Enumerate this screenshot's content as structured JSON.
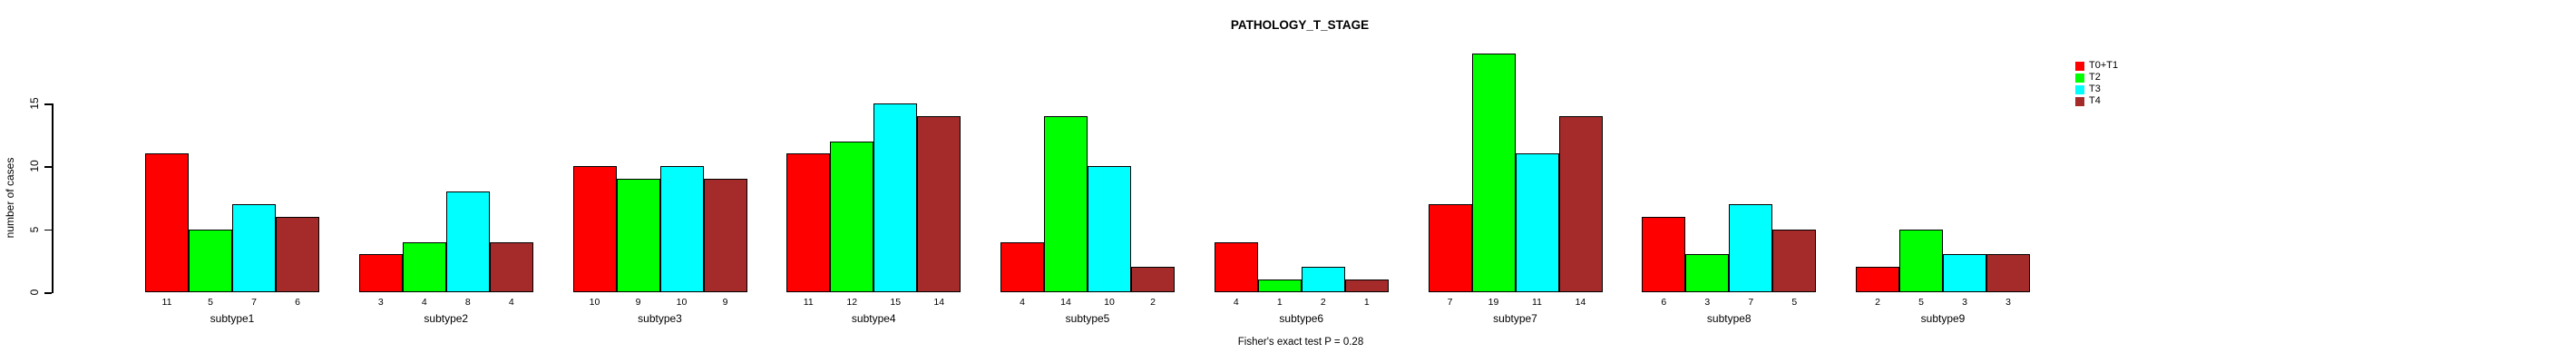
{
  "title": "PATHOLOGY_T_STAGE",
  "annotation": "Fisher's exact test P = 0.28",
  "y_axis": {
    "label": "number of cases",
    "ticks": [
      0,
      5,
      10,
      15
    ]
  },
  "legend": {
    "position": "right",
    "items": [
      {
        "label": "T0+T1",
        "color": "#FF0000"
      },
      {
        "label": "T2",
        "color": "#00FF00"
      },
      {
        "label": "T3",
        "color": "#00FFFF"
      },
      {
        "label": "T4",
        "color": "#A52A2A"
      }
    ]
  },
  "chart_data": {
    "type": "bar",
    "title": "PATHOLOGY_T_STAGE",
    "xlabel": "",
    "ylabel": "number of cases",
    "ylim": [
      0,
      15
    ],
    "yticks": [
      0,
      5,
      10,
      15
    ],
    "grid": false,
    "legend_position": "right-outside",
    "bar_value_labels_shown": true,
    "annotation": "Fisher's exact test P = 0.28",
    "categories": [
      "subtype1",
      "subtype2",
      "subtype3",
      "subtype4",
      "subtype5",
      "subtype6",
      "subtype7",
      "subtype8",
      "subtype9"
    ],
    "series": [
      {
        "name": "T0+T1",
        "color": "#FF0000",
        "values": [
          11,
          3,
          10,
          11,
          4,
          4,
          7,
          6,
          2
        ]
      },
      {
        "name": "T2",
        "color": "#00FF00",
        "values": [
          5,
          4,
          9,
          12,
          14,
          1,
          19,
          3,
          5
        ]
      },
      {
        "name": "T3",
        "color": "#00FFFF",
        "values": [
          7,
          8,
          10,
          15,
          10,
          2,
          11,
          7,
          3
        ]
      },
      {
        "name": "T4",
        "color": "#A52A2A",
        "values": [
          6,
          4,
          9,
          14,
          2,
          1,
          14,
          5,
          3
        ]
      }
    ]
  }
}
